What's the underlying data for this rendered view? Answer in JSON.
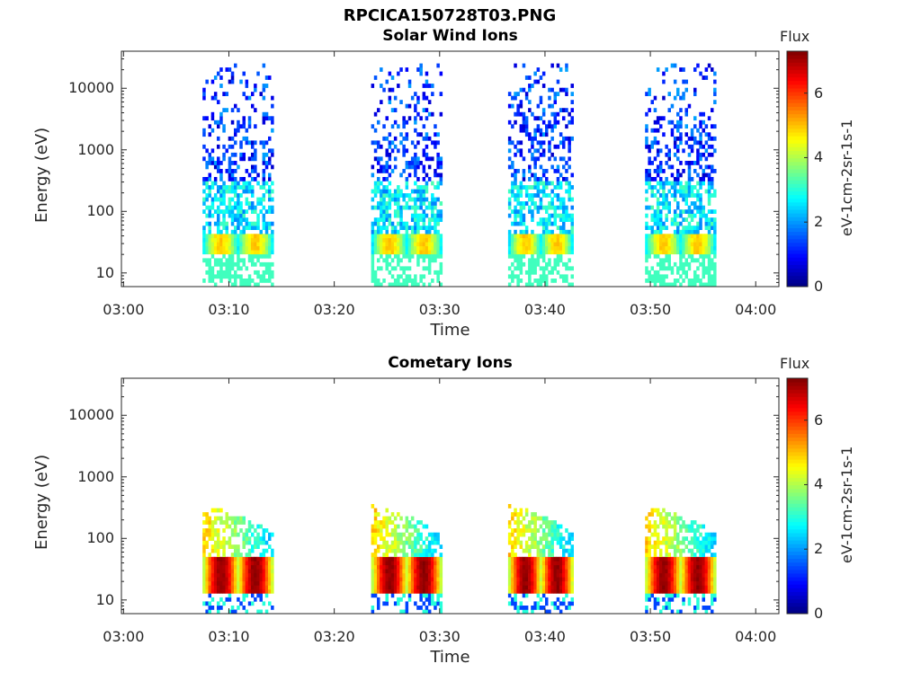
{
  "figure_title": "RPCICA150728T03.PNG",
  "colormap": [
    "#00007f",
    "#0000ff",
    "#007fff",
    "#00ffff",
    "#7fff7f",
    "#ffff00",
    "#ff7f00",
    "#ff0000",
    "#7f0000"
  ],
  "chart_data": [
    {
      "type": "heatmap",
      "title": "Solar Wind Ions",
      "xlabel": "Time",
      "ylabel": "Energy (eV)",
      "x_ticks": [
        "03:00",
        "03:10",
        "03:20",
        "03:30",
        "03:40",
        "03:50",
        "04:00"
      ],
      "y_ticks": [
        "10",
        "100",
        "1000",
        "10000"
      ],
      "yscale": "log",
      "ylim": [
        6,
        40000
      ],
      "colorbar": {
        "title": "Flux",
        "label": "eV-1cm-2sr-1s-1",
        "ticks": [
          "0",
          "2",
          "4",
          "6"
        ],
        "range": [
          0,
          7.3
        ]
      },
      "bursts_minutes": [
        [
          7.5,
          14.0
        ],
        [
          23.5,
          30.0
        ],
        [
          36.5,
          42.5
        ],
        [
          49.5,
          56.0
        ]
      ],
      "peak_flux_band_eV": [
        25,
        35
      ],
      "peak_flux_value": 4.6
    },
    {
      "type": "heatmap",
      "title": "Cometary Ions",
      "xlabel": "Time",
      "ylabel": "Energy (eV)",
      "x_ticks": [
        "03:00",
        "03:10",
        "03:20",
        "03:30",
        "03:40",
        "03:50",
        "04:00"
      ],
      "y_ticks": [
        "10",
        "100",
        "1000",
        "10000"
      ],
      "yscale": "log",
      "ylim": [
        6,
        40000
      ],
      "colorbar": {
        "title": "Flux",
        "label": "eV-1cm-2sr-1s-1",
        "ticks": [
          "0",
          "2",
          "4",
          "6"
        ],
        "range": [
          0,
          7.3
        ]
      },
      "bursts_minutes": [
        [
          7.5,
          14.0
        ],
        [
          23.5,
          30.0
        ],
        [
          36.5,
          42.5
        ],
        [
          49.5,
          56.0
        ]
      ],
      "peak_flux_band_eV": [
        20,
        40
      ],
      "peak_flux_value": 7.0
    }
  ]
}
